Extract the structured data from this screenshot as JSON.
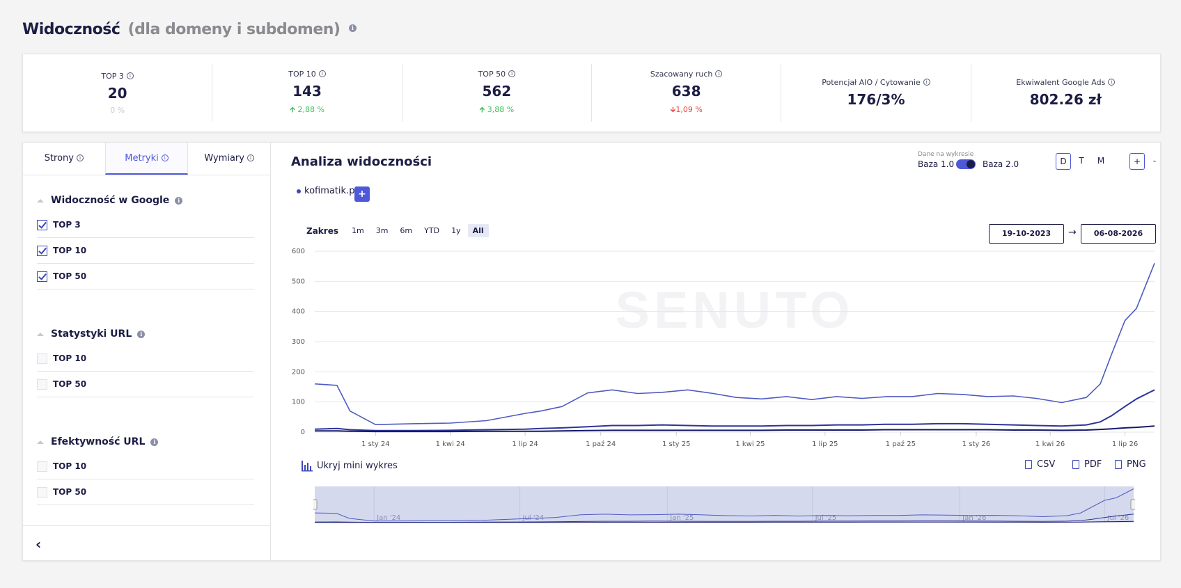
{
  "header": {
    "title": "Widoczność",
    "subtitle": "(dla domeny i subdomen)"
  },
  "stats": [
    {
      "label": "TOP 3",
      "value": "20",
      "change": "0 %",
      "trend": "neutral"
    },
    {
      "label": "TOP 10",
      "value": "143",
      "change": "2,88 %",
      "trend": "up"
    },
    {
      "label": "TOP 50",
      "value": "562",
      "change": "3,88 %",
      "trend": "up"
    },
    {
      "label": "Szacowany ruch",
      "value": "638",
      "change": "1,09 %",
      "trend": "down"
    },
    {
      "label": "Potencjał AIO / Cytowanie",
      "value": "176/3%",
      "change": "",
      "trend": "none"
    },
    {
      "label": "Ekwiwalent Google Ads",
      "value": "802.26 zł",
      "change": "",
      "trend": "none"
    }
  ],
  "sidebar": {
    "tabs": [
      "Strony",
      "Metryki",
      "Wymiary"
    ],
    "groups": [
      {
        "title": "Widoczność w Google",
        "options": [
          {
            "label": "TOP 3",
            "checked": true
          },
          {
            "label": "TOP 10",
            "checked": true
          },
          {
            "label": "TOP 50",
            "checked": true
          }
        ]
      },
      {
        "title": "Statystyki URL",
        "options": [
          {
            "label": "TOP 10",
            "checked": false
          },
          {
            "label": "TOP 50",
            "checked": false
          }
        ]
      },
      {
        "title": "Efektywność URL",
        "options": [
          {
            "label": "TOP 10",
            "checked": false
          },
          {
            "label": "TOP 50",
            "checked": false
          }
        ]
      }
    ]
  },
  "chart_panel": {
    "title": "Analiza widoczności",
    "toggle_caption": "Dane na wykresie",
    "toggle_left": "Baza 1.0",
    "toggle_right": "Baza 2.0",
    "periods": [
      "D",
      "T",
      "M"
    ],
    "zoom_in": "+",
    "zoom_out": "-",
    "domain": "kofimatik.pl",
    "add_label": "+",
    "range_label": "Zakres",
    "range_buttons": [
      "1m",
      "3m",
      "6m",
      "YTD",
      "1y",
      "All"
    ],
    "date_from": "19-10-2023",
    "date_to": "06-08-2026",
    "arrow": "→",
    "mini_toggle": "Ukryj mini wykres",
    "exports": [
      "CSV",
      "PDF",
      "PNG"
    ],
    "watermark": "SENUTO"
  },
  "chart_data": {
    "type": "line",
    "x_ticks": [
      "1 sty 24",
      "1 kwi 24",
      "1 lip 24",
      "1 paź 24",
      "1 sty 25",
      "1 kwi 25",
      "1 lip 25",
      "1 paź 25",
      "1 sty 26",
      "1 kwi 26",
      "1 lip 26"
    ],
    "y_ticks": [
      0,
      100,
      200,
      300,
      400,
      500,
      600
    ],
    "ylim": [
      0,
      600
    ],
    "navigator_ticks": [
      "Jan '24",
      "Jul '24",
      "Jan '25",
      "Jul '25",
      "Jan '26",
      "Jul '26"
    ],
    "x": [
      "2023-10-19",
      "2023-11-15",
      "2023-12-01",
      "2024-01-01",
      "2024-02-15",
      "2024-04-01",
      "2024-05-15",
      "2024-07-01",
      "2024-07-20",
      "2024-08-15",
      "2024-09-15",
      "2024-10-15",
      "2024-11-15",
      "2024-12-15",
      "2025-01-15",
      "2025-02-15",
      "2025-03-15",
      "2025-04-15",
      "2025-05-15",
      "2025-06-15",
      "2025-07-15",
      "2025-08-15",
      "2025-09-15",
      "2025-10-15",
      "2025-11-15",
      "2025-12-15",
      "2026-01-15",
      "2026-02-15",
      "2026-03-15",
      "2026-04-15",
      "2026-05-15",
      "2026-06-01",
      "2026-06-15",
      "2026-07-01",
      "2026-07-15",
      "2026-08-06"
    ],
    "series": [
      {
        "values": [
          160,
          155,
          70,
          25,
          28,
          30,
          38,
          62,
          70,
          85,
          130,
          140,
          128,
          132,
          140,
          128,
          115,
          110,
          118,
          108,
          118,
          112,
          118,
          118,
          128,
          125,
          118,
          120,
          112,
          98,
          115,
          160,
          260,
          370,
          410,
          560
        ]
      },
      {
        "values": [
          10,
          12,
          8,
          5,
          5,
          6,
          8,
          10,
          12,
          14,
          18,
          22,
          22,
          24,
          22,
          20,
          20,
          20,
          22,
          22,
          24,
          24,
          26,
          26,
          28,
          28,
          26,
          24,
          22,
          20,
          24,
          34,
          55,
          85,
          110,
          140
        ]
      },
      {
        "values": [
          4,
          4,
          3,
          2,
          2,
          2,
          3,
          3,
          3,
          4,
          5,
          6,
          6,
          6,
          6,
          6,
          6,
          6,
          7,
          7,
          7,
          7,
          8,
          8,
          8,
          8,
          8,
          7,
          7,
          6,
          7,
          9,
          11,
          14,
          16,
          20
        ]
      }
    ]
  },
  "colors": {
    "accent": "#4d59d9",
    "navy": "#1c1d44",
    "series1": "#4f5bc2",
    "series2": "#2c3499",
    "series3": "#161a6a",
    "up": "#3cc05c",
    "down": "#e8443c"
  }
}
